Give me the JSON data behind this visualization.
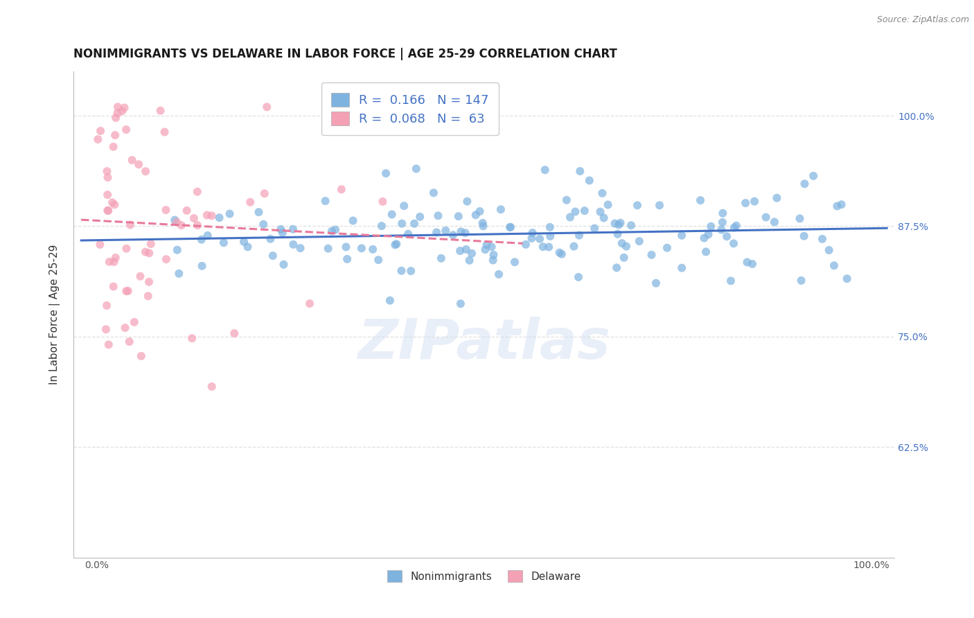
{
  "title": "NONIMMIGRANTS VS DELAWARE IN LABOR FORCE | AGE 25-29 CORRELATION CHART",
  "source": "Source: ZipAtlas.com",
  "ylabel": "In Labor Force | Age 25-29",
  "ytick_positions": [
    0.625,
    0.75,
    0.875,
    1.0
  ],
  "ytick_labels": [
    "62.5%",
    "75.0%",
    "87.5%",
    "100.0%"
  ],
  "xtick_positions": [
    0.0,
    1.0
  ],
  "xtick_labels": [
    "0.0%",
    "100.0%"
  ],
  "ylim": [
    0.5,
    1.05
  ],
  "xlim": [
    -0.03,
    1.03
  ],
  "blue_R": 0.166,
  "blue_N": 147,
  "pink_R": 0.068,
  "pink_N": 63,
  "blue_color": "#7EB3E0",
  "pink_color": "#F4A0B5",
  "blue_line_color": "#4472C4",
  "pink_line_color": "#E8799A",
  "background_color": "#FFFFFF",
  "grid_color": "#E0E0E0",
  "watermark": "ZIPatlas",
  "legend_label_blue": "Nonimmigrants",
  "legend_label_pink": "Delaware",
  "title_fontsize": 12,
  "axis_label_fontsize": 11,
  "tick_fontsize": 10,
  "seed": 42
}
